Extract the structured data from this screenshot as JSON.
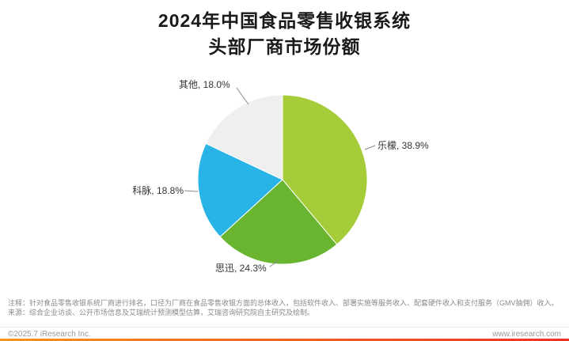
{
  "title": {
    "line1": "2024年中国食品零售收银系统",
    "line2": "头部厂商市场份额"
  },
  "chart_data": {
    "type": "pie",
    "title": "2024年中国食品零售收银系统头部厂商市场份额",
    "unit": "%",
    "start_angle_deg": 0,
    "direction": "clockwise",
    "legend_position": "none",
    "segments": [
      {
        "name": "乐檬",
        "value": 38.9,
        "label": "乐檬, 38.9%",
        "color": "#a5cd39"
      },
      {
        "name": "思迅",
        "value": 24.3,
        "label": "思迅, 24.3%",
        "color": "#6ab52f"
      },
      {
        "name": "科脉",
        "value": 18.8,
        "label": "科脉, 18.8%",
        "color": "#29b4e8"
      },
      {
        "name": "其他",
        "value": 18.0,
        "label": "其他, 18.0%",
        "color": "#efefef"
      }
    ]
  },
  "notes": {
    "line1": "注释：针对食品零售收银系统厂商进行排名，口径为厂商在食品零售收银方面的总体收入，包括软件收入、部署实施等服务收入、配套硬件收入和支付服务（GMV抽佣）收入。",
    "line2": "来源：综合企业访谈、公开市场信息及艾瑞统计预测模型估算，艾瑞咨询研究院自主研究及绘制。"
  },
  "footer": {
    "copyright": "©2025.7 iResearch Inc.",
    "website": "www.iresearch.com"
  },
  "colors": {
    "brand_bar_start": "#f7941e",
    "brand_bar_end": "#ee3124",
    "title_text": "#1a1a1a",
    "note_text": "#8a8a8a"
  }
}
